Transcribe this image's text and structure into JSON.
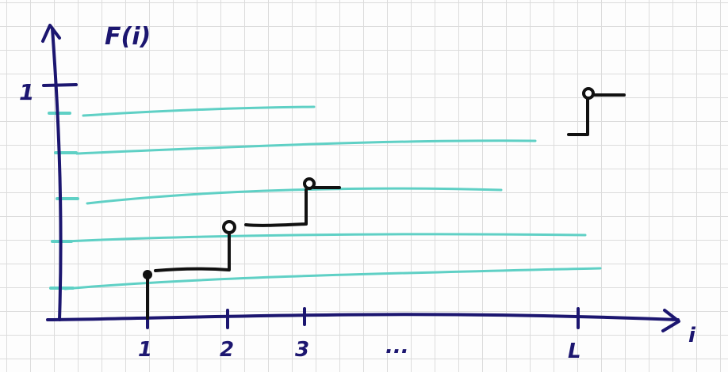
{
  "diagram": {
    "y_axis_label": "F(i)",
    "x_axis_label": "i",
    "y_top_tick_label": "1",
    "x_tick_labels": [
      "1",
      "2",
      "3",
      "...",
      "L"
    ],
    "colors": {
      "axis": "#1c1670",
      "level_lines": "#5fd0c5",
      "steps": "#111111",
      "grid": "#dcdcdc"
    }
  }
}
